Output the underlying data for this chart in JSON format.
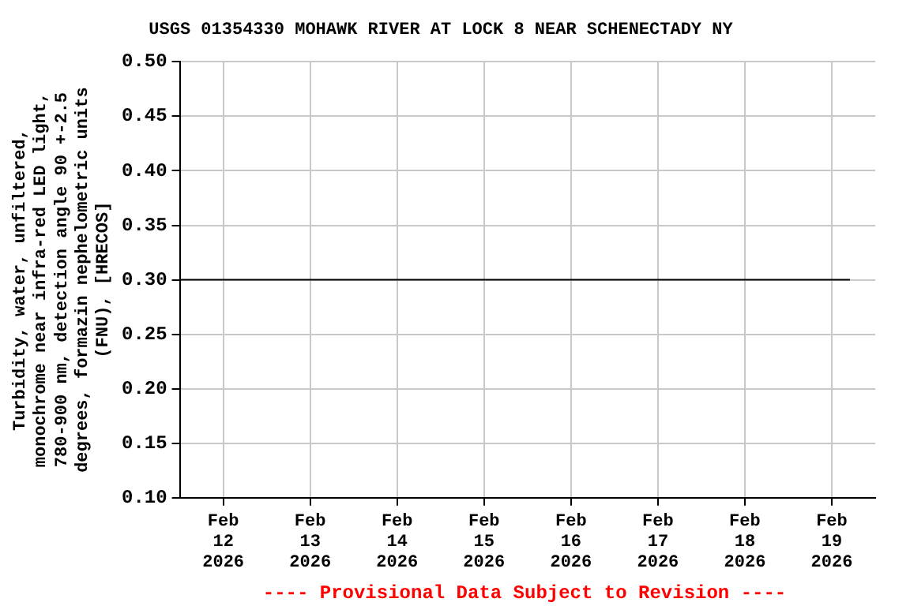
{
  "chart_data": {
    "type": "line",
    "title": "USGS 01354330 MOHAWK RIVER AT LOCK 8 NEAR SCHENECTADY NY",
    "ylabel": "Turbidity, water, unfiltered, monochrome near infra-red LED light, 780-900 nm, detection angle 90 +-2.5 degrees, formazin nephelometric units (FNU), [HRECOS]",
    "x": [
      "2026-02-11T12:00",
      "2026-02-12T12:00",
      "2026-02-13T12:00",
      "2026-02-14T12:00",
      "2026-02-15T12:00",
      "2026-02-16T12:00",
      "2026-02-17T12:00",
      "2026-02-18T12:00",
      "2026-02-19T05:00"
    ],
    "series": [
      {
        "color": "#000000",
        "values": [
          0.3,
          0.3,
          0.3,
          0.3,
          0.3,
          0.3,
          0.3,
          0.3,
          0.3
        ]
      }
    ],
    "xlim": [
      "2026-02-11T12:00",
      "2026-02-19T12:00"
    ],
    "xticks": [
      {
        "value": "2026-02-12",
        "label": "Feb 12 2026"
      },
      {
        "value": "2026-02-13",
        "label": "Feb 13 2026"
      },
      {
        "value": "2026-02-14",
        "label": "Feb 14 2026"
      },
      {
        "value": "2026-02-15",
        "label": "Feb 15 2026"
      },
      {
        "value": "2026-02-16",
        "label": "Feb 16 2026"
      },
      {
        "value": "2026-02-17",
        "label": "Feb 17 2026"
      },
      {
        "value": "2026-02-18",
        "label": "Feb 18 2026"
      },
      {
        "value": "2026-02-19",
        "label": "Feb 19 2026"
      }
    ],
    "ylim": [
      0.1,
      0.5
    ],
    "yticks": [
      {
        "value": 0.1,
        "label": "0.10"
      },
      {
        "value": 0.15,
        "label": "0.15"
      },
      {
        "value": 0.2,
        "label": "0.20"
      },
      {
        "value": 0.25,
        "label": "0.25"
      },
      {
        "value": 0.3,
        "label": "0.30"
      },
      {
        "value": 0.35,
        "label": "0.35"
      },
      {
        "value": 0.4,
        "label": "0.40"
      },
      {
        "value": 0.45,
        "label": "0.45"
      },
      {
        "value": 0.5,
        "label": "0.50"
      }
    ],
    "grid": true,
    "legend": false,
    "marker": "none",
    "line_style": "solid",
    "annotations": [
      "---- Provisional Data Subject to Revision ----"
    ]
  }
}
